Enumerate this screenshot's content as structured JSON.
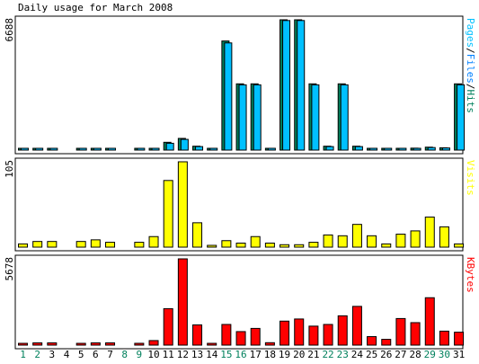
{
  "chart_data": {
    "type": "bar",
    "title": "Daily usage for March 2008",
    "days": [
      "1",
      "2",
      "3",
      "4",
      "5",
      "6",
      "7",
      "8",
      "9",
      "10",
      "11",
      "12",
      "13",
      "14",
      "15",
      "16",
      "17",
      "18",
      "19",
      "20",
      "21",
      "22",
      "23",
      "24",
      "25",
      "26",
      "27",
      "28",
      "29",
      "30",
      "31"
    ],
    "weekend_days": [
      1,
      2,
      8,
      9,
      15,
      16,
      22,
      23,
      29,
      30
    ],
    "colors": {
      "hits": "#00805c",
      "files": "#0080ff",
      "pages": "#00c0ff",
      "visits": "#ffff00",
      "kbytes": "#ff0000",
      "day_normal": "#000000",
      "day_weekend": "#00805c",
      "background": "#ffffff",
      "panel_bg": "#ffffff",
      "border": "#000000"
    },
    "panels": [
      {
        "id": "hits",
        "max_label": "6688",
        "side_label_parts": [
          {
            "text": "Pages",
            "color": "#00c0ff"
          },
          {
            "text": "/",
            "color": "#000000"
          },
          {
            "text": "Files",
            "color": "#0080ff"
          },
          {
            "text": "/",
            "color": "#000000"
          },
          {
            "text": "Hits",
            "color": "#00805c"
          }
        ],
        "max": 6688,
        "series": [
          {
            "key": "hits",
            "color": "#00805c",
            "values": [
              40,
              40,
              40,
              0,
              40,
              40,
              40,
              0,
              40,
              40,
              400,
              600,
              200,
              40,
              5600,
              3400,
              3400,
              40,
              6688,
              6688,
              3400,
              200,
              3400,
              200,
              40,
              40,
              80,
              100,
              150,
              120,
              3400
            ]
          },
          {
            "key": "files",
            "color": "#00c0ff",
            "values": [
              40,
              40,
              40,
              0,
              40,
              40,
              40,
              0,
              40,
              40,
              350,
              550,
              180,
              40,
              5500,
              3350,
              3350,
              40,
              6650,
              6650,
              3350,
              180,
              3350,
              180,
              40,
              40,
              70,
              90,
              130,
              110,
              3350
            ]
          }
        ]
      },
      {
        "id": "visits",
        "max_label": "105",
        "side_label_parts": [
          {
            "text": "Visits",
            "color": "#ffff00"
          }
        ],
        "max": 105,
        "series": [
          {
            "key": "visits",
            "color": "#ffff00",
            "values": [
              4,
              7,
              7,
              0,
              7,
              9,
              6,
              0,
              6,
              13,
              82,
              105,
              30,
              2,
              8,
              5,
              13,
              5,
              3,
              3,
              6,
              15,
              14,
              28,
              14,
              4,
              16,
              20,
              37,
              25,
              4
            ]
          }
        ]
      },
      {
        "id": "kbytes",
        "max_label": "5678",
        "side_label_parts": [
          {
            "text": "KBytes",
            "color": "#ff0000"
          }
        ],
        "max": 5678,
        "series": [
          {
            "key": "kbytes",
            "color": "#ff0000",
            "values": [
              100,
              150,
              150,
              0,
              80,
              150,
              150,
              0,
              120,
              300,
              2400,
              5678,
              1330,
              80,
              1360,
              890,
              1100,
              160,
              1580,
              1720,
              1250,
              1360,
              1930,
              2550,
              560,
              380,
              1750,
              1480,
              3120,
              920,
              850
            ]
          }
        ]
      }
    ]
  }
}
